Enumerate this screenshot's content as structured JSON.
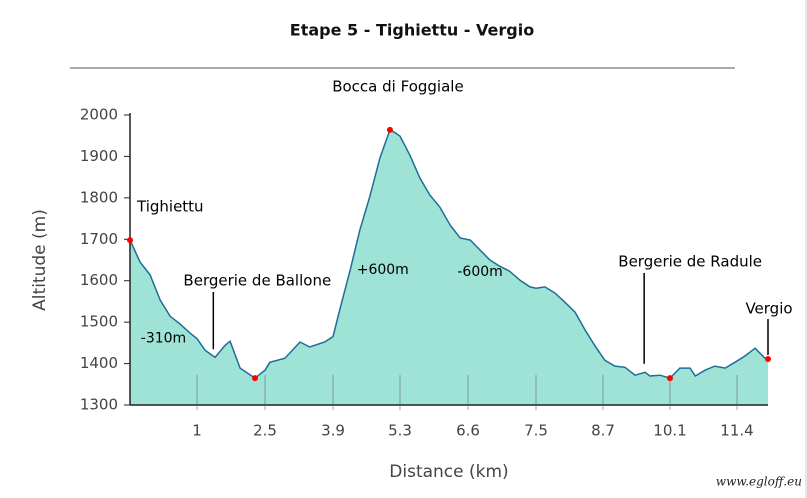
{
  "chart_data": {
    "type": "area",
    "title": "Etape 5 - Tighiettu - Vergio",
    "xlabel": "Distance (km)",
    "ylabel": "Altitude (m)",
    "watermark": "www.egloff.eu",
    "color": "#9ee3d5",
    "line_color": "#1d6e96",
    "marker_color": "#ff0000",
    "x": [
      0,
      0.15,
      0.3,
      0.45,
      0.6,
      0.75,
      0.9,
      1.0,
      1.18,
      1.4,
      1.62,
      1.73,
      1.95,
      2.28,
      2.5,
      2.6,
      2.91,
      3.22,
      3.42,
      3.73,
      3.9,
      4.05,
      4.26,
      4.46,
      4.67,
      4.88,
      5.09,
      5.2,
      5.3,
      5.49,
      5.68,
      5.87,
      6.06,
      6.26,
      6.45,
      6.63,
      6.76,
      6.89,
      7.02,
      7.15,
      7.29,
      7.42,
      7.5,
      7.66,
      7.84,
      8.02,
      8.2,
      8.38,
      8.56,
      8.74,
      8.95,
      9.16,
      9.37,
      9.58,
      9.68,
      9.89,
      10.1,
      10.29,
      10.49,
      10.59,
      10.78,
      10.97,
      11.17,
      11.36,
      11.55,
      11.75,
      11.94,
      12.0
    ],
    "values": [
      1698,
      1645,
      1614,
      1553,
      1514,
      1495,
      1473,
      1460,
      1432,
      1415,
      1444,
      1454,
      1389,
      1365,
      1384,
      1403,
      1413,
      1452,
      1440,
      1452,
      1465,
      1534,
      1626,
      1722,
      1804,
      1896,
      1964,
      1957,
      1949,
      1903,
      1848,
      1807,
      1778,
      1734,
      1703,
      1698,
      1674,
      1650,
      1635,
      1623,
      1601,
      1585,
      1582,
      1585,
      1570,
      1548,
      1524,
      1481,
      1442,
      1408,
      1394,
      1391,
      1372,
      1379,
      1370,
      1372,
      1365,
      1389,
      1389,
      1370,
      1384,
      1394,
      1389,
      1403,
      1418,
      1437,
      1413,
      1411
    ],
    "markers": [
      {
        "label": "Tighiettu",
        "x": 0,
        "y": 1698
      },
      {
        "x": 2.28,
        "y": 1365
      },
      {
        "label": "Bocca di Foggiale",
        "x": 5.09,
        "y": 1964
      },
      {
        "x": 10.1,
        "y": 1365
      },
      {
        "label": "Vergio",
        "x": 12.0,
        "y": 1411
      }
    ],
    "callouts": [
      {
        "label": "Bergerie de Ballone",
        "x": 1.36,
        "y": 1420
      },
      {
        "label": "Bergerie de Radule",
        "x": 9.56,
        "y": 1385
      }
    ],
    "annotations": [
      {
        "text": "-310m",
        "x": 0.5,
        "y": 1461
      },
      {
        "text": "+600m",
        "x": 4.94,
        "y": 1626
      },
      {
        "text": "-600m",
        "x": 6.76,
        "y": 1621
      }
    ],
    "xlim": [
      0,
      12.0
    ],
    "xticks": [
      1,
      2.5,
      3.9,
      5.3,
      6.6,
      7.5,
      8.7,
      10.1,
      11.4
    ],
    "ylim": [
      1300,
      2000
    ],
    "yticks": [
      1300,
      1400,
      1500,
      1600,
      1700,
      1800,
      1900,
      2000
    ]
  }
}
